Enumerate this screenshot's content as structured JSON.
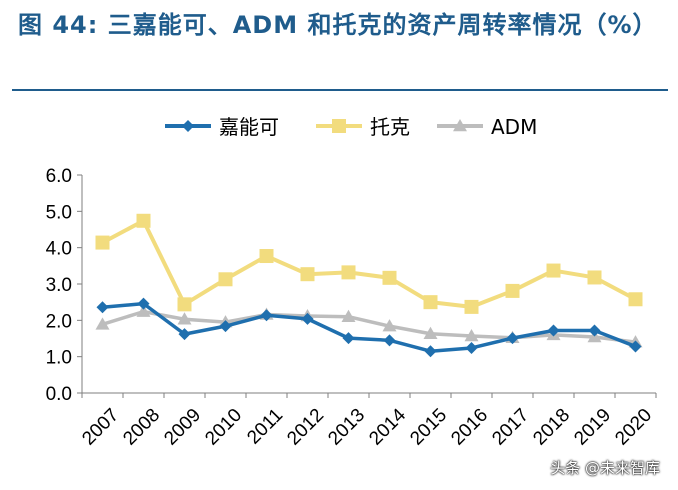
{
  "title": "图 44:  三嘉能可、ADM 和托克的资产周转率情况（%）",
  "watermark": "头条 @未来智库",
  "chart_data": {
    "type": "line",
    "title": "图 44:  三嘉能可、ADM 和托克的资产周转率情况（%）",
    "xlabel": "",
    "ylabel": "",
    "categories": [
      "2007",
      "2008",
      "2009",
      "2010",
      "2011",
      "2012",
      "2013",
      "2014",
      "2015",
      "2016",
      "2017",
      "2018",
      "2019",
      "2020"
    ],
    "ylim": [
      0,
      6
    ],
    "yticks": [
      "0.0",
      "1.0",
      "2.0",
      "3.0",
      "4.0",
      "5.0",
      "6.0"
    ],
    "grid": false,
    "legend_position": "top",
    "series": [
      {
        "name": "嘉能可",
        "color": "#1f6fae",
        "marker": "diamond",
        "values": [
          2.36,
          2.46,
          1.62,
          1.84,
          2.14,
          2.04,
          1.51,
          1.45,
          1.15,
          1.24,
          1.51,
          1.72,
          1.72,
          1.28
        ]
      },
      {
        "name": "托克",
        "color": "#f2dc7e",
        "marker": "square",
        "values": [
          4.14,
          4.74,
          2.44,
          3.13,
          3.77,
          3.27,
          3.32,
          3.17,
          2.5,
          2.37,
          2.81,
          3.37,
          3.18,
          2.58
        ]
      },
      {
        "name": "ADM",
        "color": "#bdbdbd",
        "marker": "triangle",
        "values": [
          1.89,
          2.24,
          2.03,
          1.95,
          2.16,
          2.12,
          2.1,
          1.84,
          1.63,
          1.57,
          1.52,
          1.6,
          1.54,
          1.4
        ]
      }
    ]
  }
}
